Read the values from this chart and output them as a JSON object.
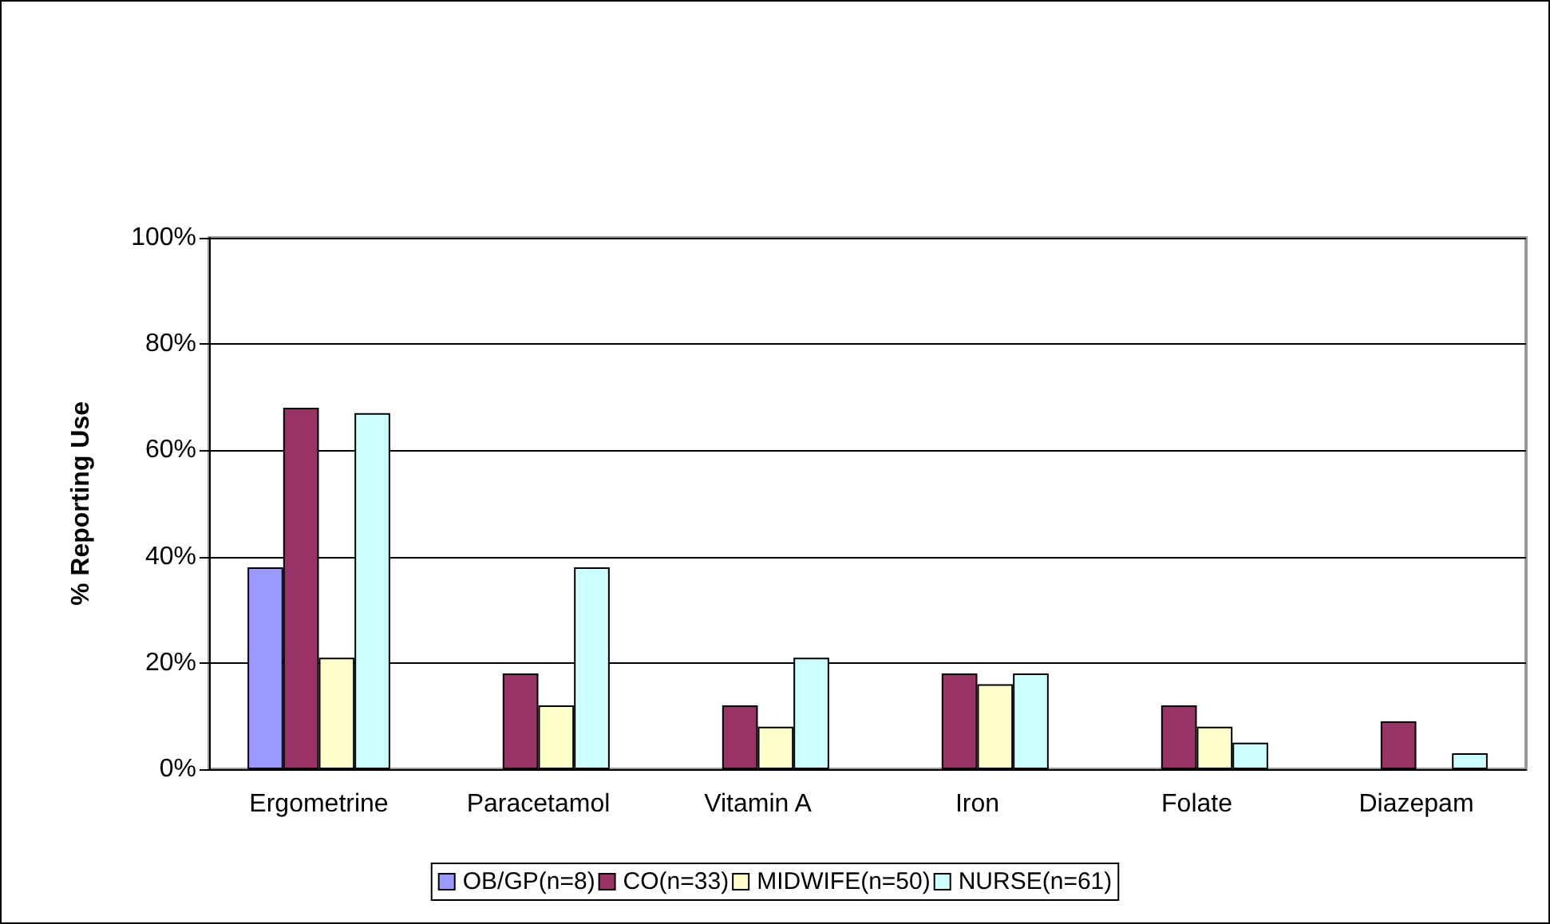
{
  "chart_data": {
    "type": "bar",
    "ylabel": "% Reporting Use",
    "categories": [
      "Ergometrine",
      "Paracetamol",
      "Vitamin A",
      "Iron",
      "Folate",
      "Diazepam"
    ],
    "series": [
      {
        "name": "OB/GP(n=8)",
        "color": "#9999ff",
        "values": [
          38,
          null,
          null,
          null,
          null,
          null
        ]
      },
      {
        "name": "CO(n=33)",
        "color": "#993366",
        "values": [
          68,
          18,
          12,
          18,
          12,
          9
        ]
      },
      {
        "name": "MIDWIFE(n=50)",
        "color": "#ffffcc",
        "values": [
          21,
          12,
          8,
          16,
          8,
          null
        ]
      },
      {
        "name": "NURSE(n=61)",
        "color": "#ccffff",
        "values": [
          67,
          38,
          21,
          18,
          5,
          3
        ]
      }
    ],
    "ylim": [
      0,
      100
    ],
    "yticks": [
      {
        "value": 0,
        "label": "0%"
      },
      {
        "value": 20,
        "label": "20%"
      },
      {
        "value": 40,
        "label": "40%"
      },
      {
        "value": 60,
        "label": "60%"
      },
      {
        "value": 80,
        "label": "80%"
      },
      {
        "value": 100,
        "label": "100%"
      }
    ],
    "grid": "y",
    "legend": "bottom"
  }
}
